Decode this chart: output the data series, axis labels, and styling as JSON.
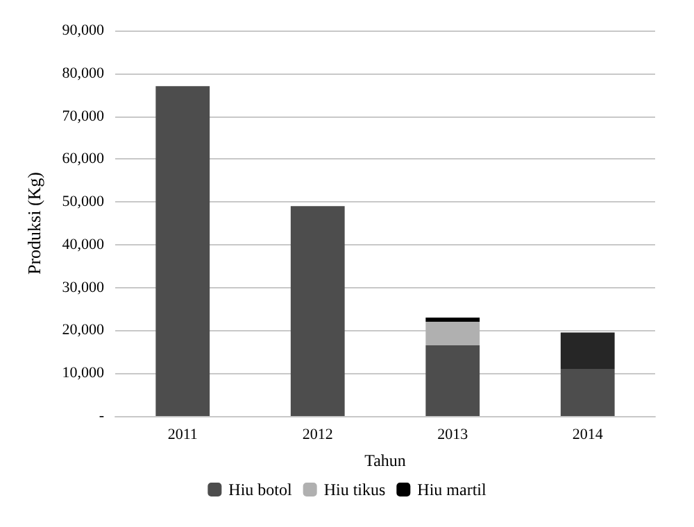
{
  "chart_data": {
    "type": "bar",
    "stacked": true,
    "xlabel": "Tahun",
    "ylabel": "Produksi (Kg)",
    "categories": [
      "2011",
      "2012",
      "2013",
      "2014"
    ],
    "series": [
      {
        "name": "Hiu botol",
        "color": "#4d4d4d",
        "values": [
          77000,
          49000,
          16500,
          11000
        ]
      },
      {
        "name": "Hiu tikus",
        "color": "#b0b0b0",
        "values": [
          0,
          0,
          5500,
          0
        ]
      },
      {
        "name": "Hiu martil",
        "color": "#000000",
        "values": [
          0,
          0,
          1000,
          0
        ]
      },
      {
        "color": "#262626",
        "values": [
          0,
          0,
          0,
          8500
        ]
      }
    ],
    "ylim": [
      0,
      90000
    ],
    "yticks": [
      {
        "value": 0,
        "label": "-"
      },
      {
        "value": 10000,
        "label": "10,000"
      },
      {
        "value": 20000,
        "label": "20,000"
      },
      {
        "value": 30000,
        "label": "30,000"
      },
      {
        "value": 40000,
        "label": "40,000"
      },
      {
        "value": 50000,
        "label": "50,000"
      },
      {
        "value": 60000,
        "label": "60,000"
      },
      {
        "value": 70000,
        "label": "70,000"
      },
      {
        "value": 80000,
        "label": "80,000"
      },
      {
        "value": 90000,
        "label": "90,000"
      }
    ],
    "grid": "y",
    "legend": "bottom"
  }
}
